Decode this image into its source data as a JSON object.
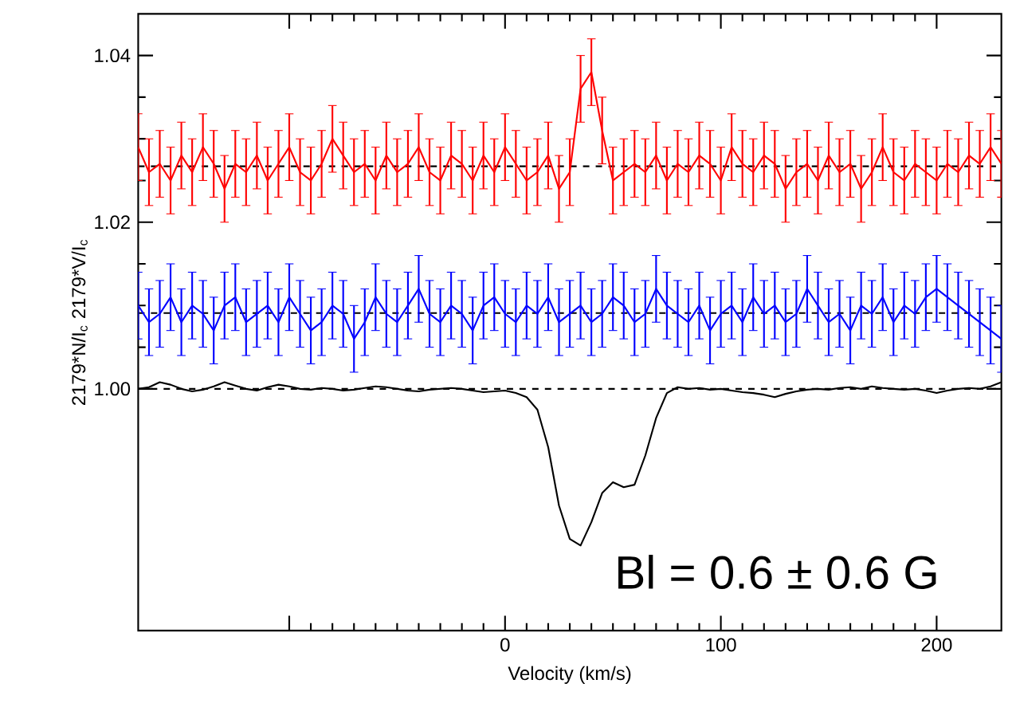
{
  "chart_data": {
    "type": "line",
    "xlabel": "Velocity (km/s)",
    "ylabel": "2179*N/I$_{c}$  2179*V/I$_{c}$",
    "annotations": [
      "Bl = 0.6 ± 0.6 G"
    ],
    "x": [
      -170,
      -165,
      -160,
      -155,
      -150,
      -145,
      -140,
      -135,
      -130,
      -125,
      -120,
      -115,
      -110,
      -105,
      -100,
      -95,
      -90,
      -85,
      -80,
      -75,
      -70,
      -65,
      -60,
      -55,
      -50,
      -45,
      -40,
      -35,
      -30,
      -25,
      -20,
      -15,
      -10,
      -5,
      0,
      5,
      10,
      15,
      20,
      25,
      30,
      35,
      40,
      45,
      50,
      55,
      60,
      65,
      70,
      75,
      80,
      85,
      90,
      95,
      100,
      105,
      110,
      115,
      120,
      125,
      130,
      135,
      140,
      145,
      150,
      155,
      160,
      165,
      170,
      175,
      180,
      185,
      190,
      195,
      200,
      205,
      210,
      215,
      220,
      225,
      230
    ],
    "series": [
      {
        "color": "#ff0000",
        "values": [
          1.029,
          1.026,
          1.027,
          1.025,
          1.028,
          1.026,
          1.029,
          1.027,
          1.024,
          1.027,
          1.026,
          1.028,
          1.025,
          1.027,
          1.029,
          1.026,
          1.025,
          1.027,
          1.03,
          1.028,
          1.026,
          1.027,
          1.025,
          1.028,
          1.026,
          1.027,
          1.029,
          1.026,
          1.025,
          1.028,
          1.027,
          1.025,
          1.028,
          1.026,
          1.029,
          1.027,
          1.025,
          1.026,
          1.028,
          1.024,
          1.026,
          1.036,
          1.038,
          1.031,
          1.025,
          1.026,
          1.027,
          1.026,
          1.028,
          1.025,
          1.027,
          1.026,
          1.028,
          1.027,
          1.025,
          1.029,
          1.027,
          1.026,
          1.028,
          1.027,
          1.024,
          1.026,
          1.027,
          1.025,
          1.028,
          1.026,
          1.027,
          1.024,
          1.026,
          1.029,
          1.026,
          1.025,
          1.027,
          1.026,
          1.025,
          1.027,
          1.026,
          1.028,
          1.027,
          1.029,
          1.027
        ],
        "errors": [
          0.004,
          0.004,
          0.004,
          0.004,
          0.004,
          0.004,
          0.004,
          0.004,
          0.004,
          0.004,
          0.004,
          0.004,
          0.004,
          0.004,
          0.004,
          0.004,
          0.004,
          0.004,
          0.004,
          0.004,
          0.004,
          0.004,
          0.004,
          0.004,
          0.004,
          0.004,
          0.004,
          0.004,
          0.004,
          0.004,
          0.004,
          0.004,
          0.004,
          0.004,
          0.004,
          0.004,
          0.004,
          0.004,
          0.004,
          0.004,
          0.004,
          0.004,
          0.004,
          0.004,
          0.004,
          0.004,
          0.004,
          0.004,
          0.004,
          0.004,
          0.004,
          0.004,
          0.004,
          0.004,
          0.004,
          0.004,
          0.004,
          0.004,
          0.004,
          0.004,
          0.004,
          0.004,
          0.004,
          0.004,
          0.004,
          0.004,
          0.004,
          0.004,
          0.004,
          0.004,
          0.004,
          0.004,
          0.004,
          0.004,
          0.004,
          0.004,
          0.004,
          0.004,
          0.004,
          0.004,
          0.004
        ]
      },
      {
        "color": "#0000ff",
        "values": [
          1.01,
          1.008,
          1.009,
          1.011,
          1.008,
          1.01,
          1.009,
          1.007,
          1.01,
          1.011,
          1.008,
          1.009,
          1.01,
          1.008,
          1.011,
          1.009,
          1.007,
          1.008,
          1.01,
          1.009,
          1.006,
          1.008,
          1.011,
          1.009,
          1.008,
          1.01,
          1.012,
          1.009,
          1.008,
          1.01,
          1.009,
          1.007,
          1.01,
          1.011,
          1.009,
          1.008,
          1.01,
          1.009,
          1.011,
          1.008,
          1.009,
          1.01,
          1.008,
          1.009,
          1.011,
          1.01,
          1.008,
          1.009,
          1.012,
          1.01,
          1.009,
          1.008,
          1.01,
          1.007,
          1.009,
          1.01,
          1.008,
          1.011,
          1.009,
          1.01,
          1.008,
          1.009,
          1.012,
          1.01,
          1.008,
          1.009,
          1.007,
          1.01,
          1.009,
          1.011,
          1.008,
          1.01,
          1.009,
          1.011,
          1.012,
          1.011,
          1.01,
          1.009,
          1.008,
          1.007,
          1.006
        ],
        "errors": [
          0.004,
          0.004,
          0.004,
          0.004,
          0.004,
          0.004,
          0.004,
          0.004,
          0.004,
          0.004,
          0.004,
          0.004,
          0.004,
          0.004,
          0.004,
          0.004,
          0.004,
          0.004,
          0.004,
          0.004,
          0.004,
          0.004,
          0.004,
          0.004,
          0.004,
          0.004,
          0.004,
          0.004,
          0.004,
          0.004,
          0.004,
          0.004,
          0.004,
          0.004,
          0.004,
          0.004,
          0.004,
          0.004,
          0.004,
          0.004,
          0.004,
          0.004,
          0.004,
          0.004,
          0.004,
          0.004,
          0.004,
          0.004,
          0.004,
          0.004,
          0.004,
          0.004,
          0.004,
          0.004,
          0.004,
          0.004,
          0.004,
          0.004,
          0.004,
          0.004,
          0.004,
          0.004,
          0.004,
          0.004,
          0.004,
          0.004,
          0.004,
          0.004,
          0.004,
          0.004,
          0.004,
          0.004,
          0.004,
          0.004,
          0.004,
          0.004,
          0.004,
          0.004,
          0.004,
          0.004,
          0.004
        ]
      },
      {
        "color": "#000000",
        "values": [
          1.0,
          1.0002,
          1.0008,
          1.0005,
          1.0,
          0.9997,
          0.9999,
          1.0003,
          1.0008,
          1.0004,
          1.0,
          0.9998,
          1.0002,
          1.0005,
          1.0003,
          1.0,
          0.9999,
          1.0001,
          1.0,
          0.9998,
          0.9999,
          1.0001,
          1.0003,
          1.0002,
          1.0,
          0.9998,
          0.9997,
          0.9999,
          1.0,
          1.0001,
          1.0,
          0.9998,
          0.9996,
          0.9997,
          0.9998,
          0.9995,
          0.999,
          0.9975,
          0.993,
          0.986,
          0.982,
          0.9812,
          0.984,
          0.9875,
          0.9888,
          0.9882,
          0.9885,
          0.992,
          0.9965,
          0.9995,
          1.0002,
          1.0,
          1.0001,
          0.9999,
          1.0,
          0.9998,
          0.9996,
          0.9995,
          0.9993,
          0.999,
          0.9994,
          0.9997,
          0.9999,
          1.0,
          0.9999,
          1.0001,
          1.0002,
          1.0,
          1.0003,
          1.0001,
          1.0,
          0.9999,
          1.0,
          0.9998,
          0.9995,
          0.9998,
          1.0,
          1.0001,
          1.0,
          1.0003,
          1.0008
        ]
      }
    ],
    "xlim": [
      -170,
      230
    ],
    "xticks": [
      {
        "value": -100,
        "label": null
      },
      0,
      100,
      200
    ],
    "ylim": [
      0.971,
      1.045
    ],
    "yticks": [
      {
        "value": 1.0,
        "label": "1.00"
      },
      {
        "value": 1.02,
        "label": "1.02"
      },
      {
        "value": 1.04,
        "label": "1.04"
      }
    ],
    "ref_lines": [
      {
        "axis": "y",
        "value": 1.0267,
        "color": "#000000",
        "line_style": "dashed"
      },
      {
        "axis": "y",
        "value": 1.0091,
        "color": "#000000",
        "line_style": "dashed"
      },
      {
        "axis": "y",
        "value": 1.0,
        "color": "#000000",
        "line_style": "dashed"
      }
    ],
    "marker": "none",
    "line_style": "solid"
  }
}
